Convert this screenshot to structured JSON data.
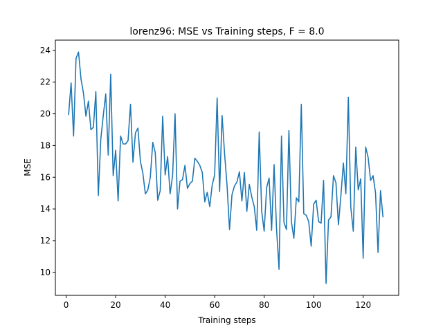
{
  "chart_data": {
    "type": "line",
    "title": "lorenz96: MSE vs Training steps, F = 8.0",
    "xlabel": "Training steps",
    "ylabel": "MSE",
    "xlim": [
      -4.35,
      134.35
    ],
    "ylim": [
      8.55,
      24.65
    ],
    "xticks": [
      0,
      20,
      40,
      60,
      80,
      100,
      120
    ],
    "yticks": [
      10,
      12,
      14,
      16,
      18,
      20,
      22,
      24
    ],
    "grid": false,
    "legend": "none",
    "series": [
      {
        "color": "#1f77b4",
        "x": [
          1,
          2,
          3,
          4,
          5,
          6,
          7,
          8,
          9,
          10,
          11,
          12,
          13,
          14,
          15,
          16,
          17,
          18,
          19,
          20,
          21,
          22,
          23,
          24,
          25,
          26,
          27,
          28,
          29,
          30,
          31,
          32,
          33,
          34,
          35,
          36,
          37,
          38,
          39,
          40,
          41,
          42,
          43,
          44,
          45,
          46,
          47,
          48,
          49,
          50,
          51,
          52,
          53,
          54,
          55,
          56,
          57,
          58,
          59,
          60,
          61,
          62,
          63,
          64,
          65,
          66,
          67,
          68,
          69,
          70,
          71,
          72,
          73,
          74,
          75,
          76,
          77,
          78,
          79,
          80,
          81,
          82,
          83,
          84,
          85,
          86,
          87,
          88,
          89,
          90,
          91,
          92,
          93,
          94,
          95,
          96,
          97,
          98,
          99,
          100,
          101,
          102,
          103,
          104,
          105,
          106,
          107,
          108,
          109,
          110,
          111,
          112,
          113,
          114,
          115,
          116,
          117,
          118,
          119,
          120,
          121,
          122,
          123,
          124,
          125,
          126,
          127,
          128
        ],
        "y": [
          19.95,
          21.95,
          18.6,
          23.5,
          23.9,
          22.2,
          21.3,
          19.85,
          20.8,
          19.0,
          19.15,
          21.4,
          14.85,
          18.4,
          19.9,
          21.25,
          17.4,
          22.5,
          16.1,
          17.7,
          14.5,
          18.6,
          18.1,
          18.1,
          18.3,
          20.6,
          16.95,
          18.8,
          19.1,
          17.0,
          16.25,
          14.95,
          15.2,
          16.0,
          18.2,
          17.55,
          14.55,
          15.15,
          19.85,
          16.15,
          17.3,
          14.95,
          16.1,
          20.0,
          14.0,
          15.75,
          15.85,
          16.75,
          15.3,
          15.6,
          15.75,
          17.2,
          17.0,
          16.75,
          16.3,
          14.45,
          15.05,
          14.15,
          15.5,
          16.15,
          21.0,
          15.1,
          19.9,
          17.5,
          15.5,
          12.7,
          14.9,
          15.45,
          15.7,
          16.35,
          14.5,
          16.3,
          13.85,
          15.55,
          14.75,
          14.15,
          12.65,
          18.85,
          13.85,
          12.6,
          15.35,
          15.95,
          12.65,
          16.8,
          12.75,
          10.2,
          18.6,
          13.15,
          12.7,
          18.95,
          13.2,
          12.15,
          14.7,
          14.45,
          20.6,
          13.7,
          13.6,
          13.2,
          11.65,
          14.3,
          14.55,
          13.2,
          13.1,
          15.8,
          9.3,
          13.3,
          13.5,
          16.1,
          15.65,
          13.0,
          14.85,
          16.9,
          14.95,
          21.05,
          14.1,
          12.6,
          17.9,
          15.2,
          15.9,
          10.9,
          17.9,
          17.25,
          15.8,
          16.1,
          15.0,
          11.25,
          15.15,
          13.5
        ]
      }
    ]
  }
}
